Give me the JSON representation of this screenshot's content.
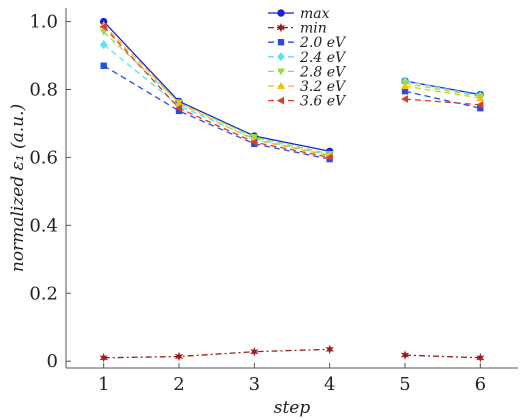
{
  "chart_data": {
    "type": "line",
    "title": "",
    "xlabel": "step",
    "ylabel": "normalized ε₁ (a.u.)",
    "x": [
      1,
      2,
      3,
      4,
      5,
      6
    ],
    "xlim": [
      0.5,
      6.5
    ],
    "ylim": [
      -0.02,
      1.04
    ],
    "xticks": [
      1,
      2,
      3,
      4,
      5,
      6
    ],
    "yticks": [
      0,
      0.2,
      0.4,
      0.6,
      0.8,
      1.0
    ],
    "ytick_labels": [
      "0",
      "0.2",
      "0.4",
      "0.6",
      "0.8",
      "1.0"
    ],
    "grid": false,
    "legend_position": "top-center",
    "series": [
      {
        "name": "max",
        "color": "#1f1fd6",
        "marker": "circle",
        "line": "solid",
        "values": [
          1.0,
          0.765,
          0.663,
          0.618,
          0.825,
          0.785
        ]
      },
      {
        "name": "min",
        "color": "#9b1c1c",
        "marker": "star",
        "line": "dashed",
        "values": [
          0.01,
          0.014,
          0.028,
          0.035,
          0.018,
          0.01
        ]
      },
      {
        "name": "2.0 eV",
        "color": "#2a4de0",
        "marker": "square",
        "line": "dashed",
        "values": [
          0.87,
          0.737,
          0.64,
          0.595,
          0.795,
          0.745
        ]
      },
      {
        "name": "2.4 eV",
        "color": "#5fe0f0",
        "marker": "diamond",
        "line": "dashed",
        "values": [
          0.932,
          0.752,
          0.655,
          0.607,
          0.825,
          0.782
        ]
      },
      {
        "name": "2.8 eV",
        "color": "#8fe24a",
        "marker": "triangle-down",
        "line": "dashed",
        "values": [
          0.97,
          0.762,
          0.66,
          0.61,
          0.818,
          0.78
        ]
      },
      {
        "name": "3.2 eV",
        "color": "#f0c010",
        "marker": "triangle-up",
        "line": "dashed",
        "values": [
          0.99,
          0.76,
          0.652,
          0.605,
          0.81,
          0.775
        ]
      },
      {
        "name": "3.6 eV",
        "color": "#e03a2a",
        "marker": "triangle-left",
        "line": "dashed",
        "values": [
          0.985,
          0.745,
          0.645,
          0.6,
          0.772,
          0.755
        ]
      }
    ]
  }
}
